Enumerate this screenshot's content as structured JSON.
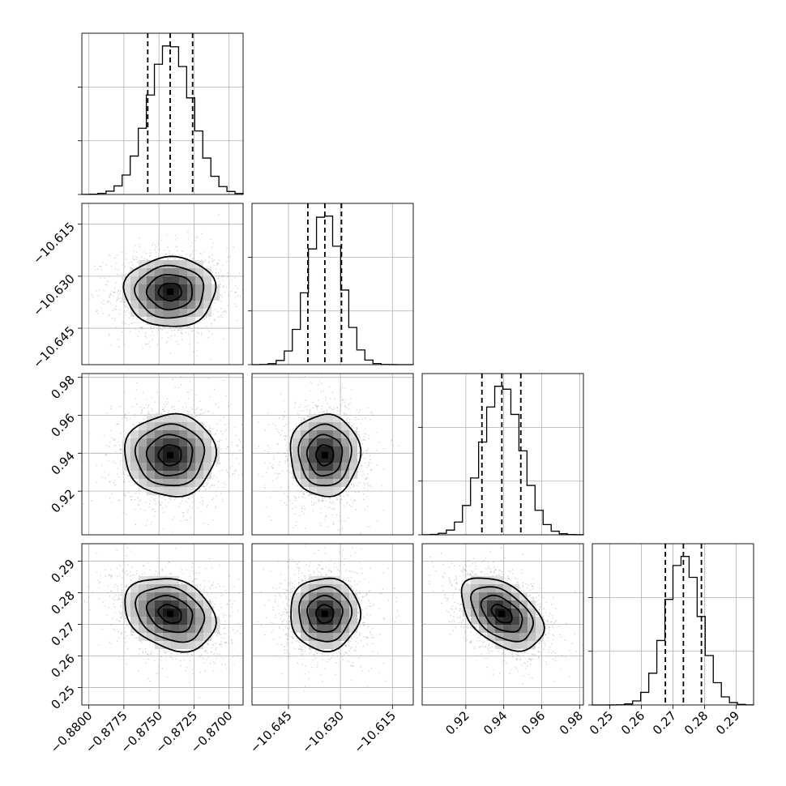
{
  "chart_data": {
    "type": "corner",
    "grid": true,
    "params": [
      {
        "range": [
          -0.8805,
          -0.869
        ],
        "center": -0.8742,
        "sigma": 0.00155,
        "quantiles": [
          -0.8758,
          -0.8742,
          -0.8726
        ],
        "ticks": [
          -0.88,
          -0.8775,
          -0.875,
          -0.8725,
          -0.87
        ],
        "tick_labels": [
          "−0.8800",
          "−0.8775",
          "−0.8750",
          "−0.8725",
          "−0.8700"
        ]
      },
      {
        "range": [
          -10.6555,
          -10.609
        ],
        "center": -10.6345,
        "sigma": 0.0048,
        "quantiles": [
          -10.6394,
          -10.6345,
          -10.6297
        ],
        "ticks": [
          -10.645,
          -10.63,
          -10.615
        ],
        "tick_labels": [
          "−10.645",
          "−10.630",
          "−10.615"
        ]
      },
      {
        "range": [
          0.897,
          0.982
        ],
        "center": 0.939,
        "sigma": 0.0103,
        "quantiles": [
          0.9285,
          0.939,
          0.949
        ],
        "ticks": [
          0.92,
          0.94,
          0.96,
          0.98
        ],
        "tick_labels": [
          "0.92",
          "0.94",
          "0.96",
          "0.98"
        ]
      },
      {
        "range": [
          0.2445,
          0.2955
        ],
        "center": 0.2733,
        "sigma": 0.0055,
        "quantiles": [
          0.2676,
          0.2733,
          0.279
        ],
        "ticks": [
          0.25,
          0.26,
          0.27,
          0.28,
          0.29
        ],
        "tick_labels": [
          "0.25",
          "0.26",
          "0.27",
          "0.28",
          "0.29"
        ]
      }
    ],
    "correlations": {
      "1-0": 0.0,
      "2-0": 0.0,
      "2-1": 0.0,
      "3-0": -0.25,
      "3-1": 0.0,
      "3-2": -0.45
    },
    "histogram_bins": 20,
    "contour_levels": [
      0.118,
      0.393,
      0.675,
      0.864
    ]
  }
}
